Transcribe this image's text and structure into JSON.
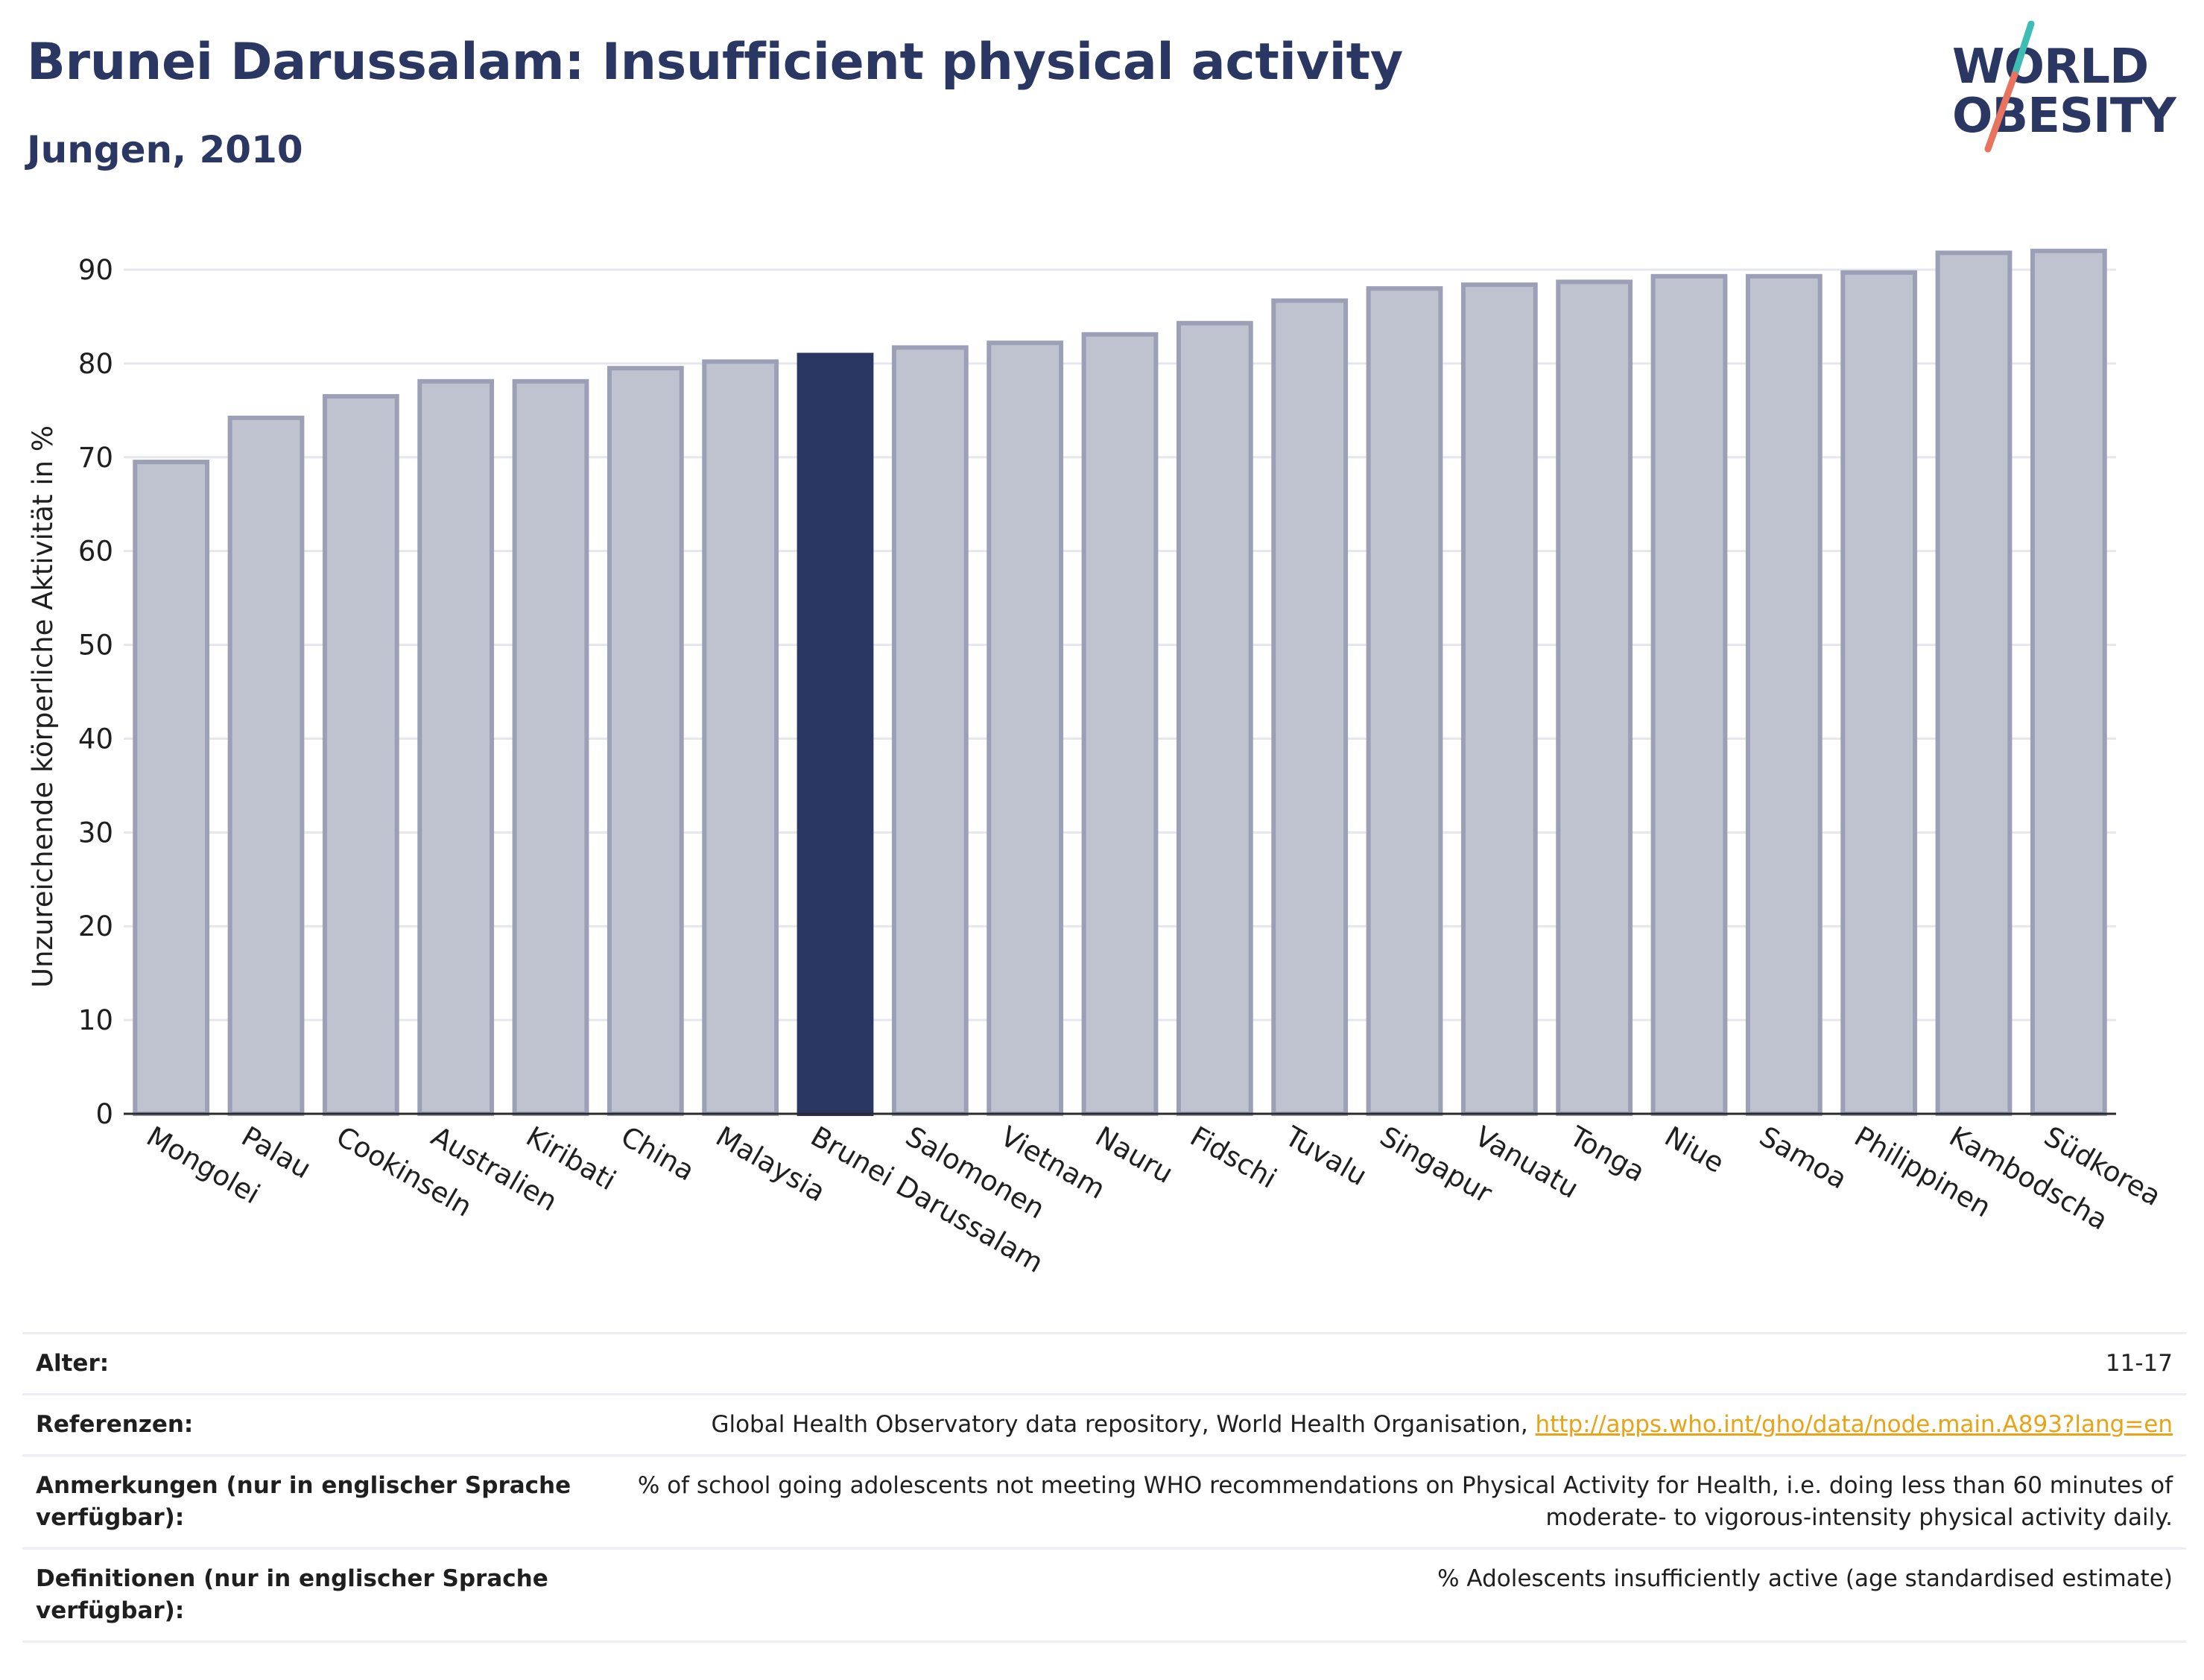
{
  "header": {
    "title": "Brunei Darussalam: Insufficient physical activity",
    "subtitle": "Jungen, 2010"
  },
  "logo": {
    "line1": "WORLD",
    "line2": "OBESITY"
  },
  "colors": {
    "highlight": "#2a3763",
    "bar_fill": "#bfc2cf",
    "bar_stroke": "#9ba0b6",
    "grid": "#e6e7ec",
    "logo_teal": "#3dbdb4",
    "logo_coral": "#e8735f"
  },
  "chart_data": {
    "type": "bar",
    "title": "Brunei Darussalam: Insufficient physical activity",
    "subtitle": "Jungen, 2010",
    "ylabel": "Unzureichende körperliche Aktivität in %",
    "xlabel": "",
    "ylim": [
      0,
      95
    ],
    "yticks": [
      0,
      10,
      20,
      30,
      40,
      50,
      60,
      70,
      80,
      90
    ],
    "grid": true,
    "highlight": "Brunei Darussalam",
    "categories": [
      "Mongolei",
      "Palau",
      "Cookinseln",
      "Australien",
      "Kiribati",
      "China",
      "Malaysia",
      "Brunei Darussalam",
      "Salomonen",
      "Vietnam",
      "Nauru",
      "Fidschi",
      "Tuvalu",
      "Singapur",
      "Vanuatu",
      "Tonga",
      "Niue",
      "Samoa",
      "Philippinen",
      "Kambodscha",
      "Südkorea"
    ],
    "values": [
      69.5,
      74.2,
      76.5,
      78.1,
      78.1,
      79.5,
      80.2,
      80.9,
      81.7,
      82.2,
      83.1,
      84.3,
      86.7,
      88.0,
      88.4,
      88.7,
      89.3,
      89.3,
      89.7,
      91.8,
      92.0
    ]
  },
  "meta": {
    "rows": [
      {
        "label": "Alter:",
        "value": "11-17"
      },
      {
        "label": "Referenzen:",
        "value": "Global Health Observatory data repository, World Health Organisation, ",
        "link": "http://apps.who.int/gho/data/node.main.A893?lang=en"
      },
      {
        "label": "Anmerkungen (nur in englischer Sprache verfügbar):",
        "value": "% of school going adolescents not meeting WHO recommendations on Physical Activity for Health, i.e. doing less than 60 minutes of moderate- to vigorous-intensity physical activity daily."
      },
      {
        "label": "Definitionen (nur in englischer Sprache verfügbar):",
        "value": "% Adolescents insufficiently active (age standardised estimate)"
      }
    ]
  }
}
